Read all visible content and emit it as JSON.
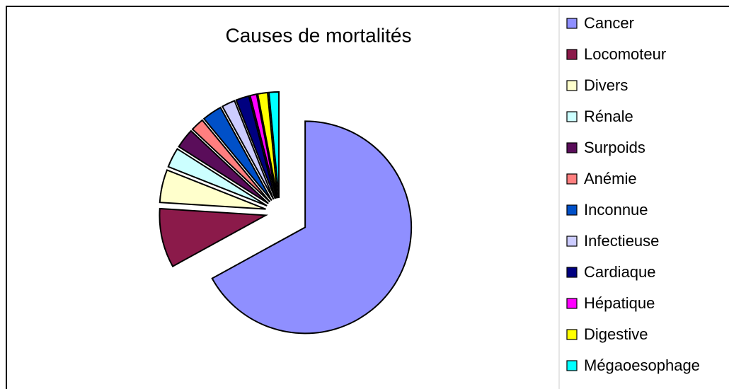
{
  "chart_data": {
    "type": "pie",
    "title": "Causes de mortalités",
    "categories": [
      "Cancer",
      "Locomoteur",
      "Divers",
      "Rénale",
      "Surpoids",
      "Anémie",
      "Inconnue",
      "Infectieuse",
      "Cardiaque",
      "Hépatique",
      "Digestive",
      "Mégaoesophage"
    ],
    "values": [
      67,
      9,
      5,
      3,
      3,
      2,
      3,
      2,
      2,
      1,
      1.5,
      1.5
    ],
    "colors": [
      "#8f8fff",
      "#8b1a4a",
      "#ffffcc",
      "#ccffff",
      "#5a0d5a",
      "#ff7f7f",
      "#0050c8",
      "#ccccff",
      "#000080",
      "#ff00ff",
      "#ffff00",
      "#00ffff"
    ],
    "legend": "right"
  }
}
